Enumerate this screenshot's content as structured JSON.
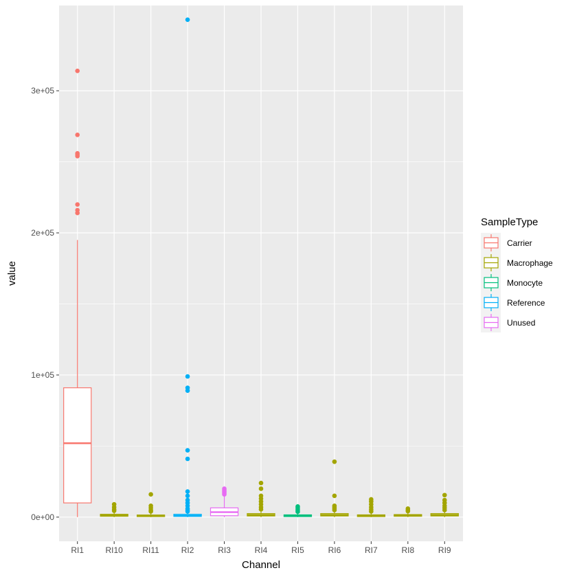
{
  "chart_data": {
    "type": "boxplot",
    "title": "",
    "xlabel": "Channel",
    "ylabel": "value",
    "ylim": [
      -17000,
      360000
    ],
    "y_ticks": [
      0,
      100000,
      200000,
      300000
    ],
    "y_tick_labels": [
      "0e+00",
      "1e+05",
      "2e+05",
      "3e+05"
    ],
    "grid": true,
    "legend": {
      "title": "SampleType",
      "position": "right",
      "entries": [
        {
          "name": "Carrier",
          "color": "#F8766D"
        },
        {
          "name": "Macrophage",
          "color": "#A3A500"
        },
        {
          "name": "Monocyte",
          "color": "#00BF7D"
        },
        {
          "name": "Reference",
          "color": "#00B0F6"
        },
        {
          "name": "Unused",
          "color": "#E76BF3"
        }
      ]
    },
    "categories": [
      "RI1",
      "RI10",
      "RI11",
      "RI2",
      "RI3",
      "RI4",
      "RI5",
      "RI6",
      "RI7",
      "RI8",
      "RI9"
    ],
    "boxes": [
      {
        "category": "RI1",
        "group": "Carrier",
        "min": 0,
        "q1": 10000,
        "median": 52000,
        "q3": 91000,
        "max": 195000,
        "outliers": [
          314000,
          269000,
          256000,
          255000,
          254000,
          220000,
          216000,
          214000
        ]
      },
      {
        "category": "RI10",
        "group": "Macrophage",
        "min": 0,
        "q1": 600,
        "median": 1200,
        "q3": 2000,
        "max": 3500,
        "outliers": [
          9000,
          7000,
          5500,
          4500
        ]
      },
      {
        "category": "RI11",
        "group": "Macrophage",
        "min": 0,
        "q1": 400,
        "median": 900,
        "q3": 1500,
        "max": 3000,
        "outliers": [
          16000,
          8000,
          6500,
          5000,
          4000
        ]
      },
      {
        "category": "RI2",
        "group": "Reference",
        "min": 0,
        "q1": 500,
        "median": 1000,
        "q3": 2000,
        "max": 3500,
        "outliers": [
          350000,
          99000,
          91000,
          89000,
          47000,
          41000,
          18000,
          15000,
          12000,
          10000,
          8000,
          6000,
          5000,
          4000
        ]
      },
      {
        "category": "RI3",
        "group": "Unused",
        "min": 0,
        "q1": 1000,
        "median": 3500,
        "q3": 6500,
        "max": 15000,
        "outliers": [
          20000,
          19000,
          18000,
          17000,
          16000
        ]
      },
      {
        "category": "RI4",
        "group": "Macrophage",
        "min": 0,
        "q1": 800,
        "median": 1500,
        "q3": 2500,
        "max": 4000,
        "outliers": [
          24000,
          20000,
          15000,
          13000,
          11000,
          9000,
          7000,
          5500
        ]
      },
      {
        "category": "RI5",
        "group": "Monocyte",
        "min": 0,
        "q1": 400,
        "median": 900,
        "q3": 1600,
        "max": 3000,
        "outliers": [
          7500,
          6500,
          5500,
          4500,
          3800
        ]
      },
      {
        "category": "RI6",
        "group": "Macrophage",
        "min": 0,
        "q1": 800,
        "median": 1500,
        "q3": 2500,
        "max": 4000,
        "outliers": [
          39000,
          15000,
          8000,
          7000,
          6000,
          5000
        ]
      },
      {
        "category": "RI7",
        "group": "Macrophage",
        "min": 0,
        "q1": 400,
        "median": 900,
        "q3": 1600,
        "max": 3000,
        "outliers": [
          12500,
          11000,
          9000,
          7000,
          5500,
          4000
        ]
      },
      {
        "category": "RI8",
        "group": "Macrophage",
        "min": 0,
        "q1": 600,
        "median": 1100,
        "q3": 1800,
        "max": 3200,
        "outliers": [
          6000,
          5000,
          4200
        ]
      },
      {
        "category": "RI9",
        "group": "Macrophage",
        "min": 0,
        "q1": 800,
        "median": 1500,
        "q3": 2500,
        "max": 4000,
        "outliers": [
          15500,
          12000,
          10000,
          8000,
          6500,
          5000
        ]
      }
    ]
  }
}
